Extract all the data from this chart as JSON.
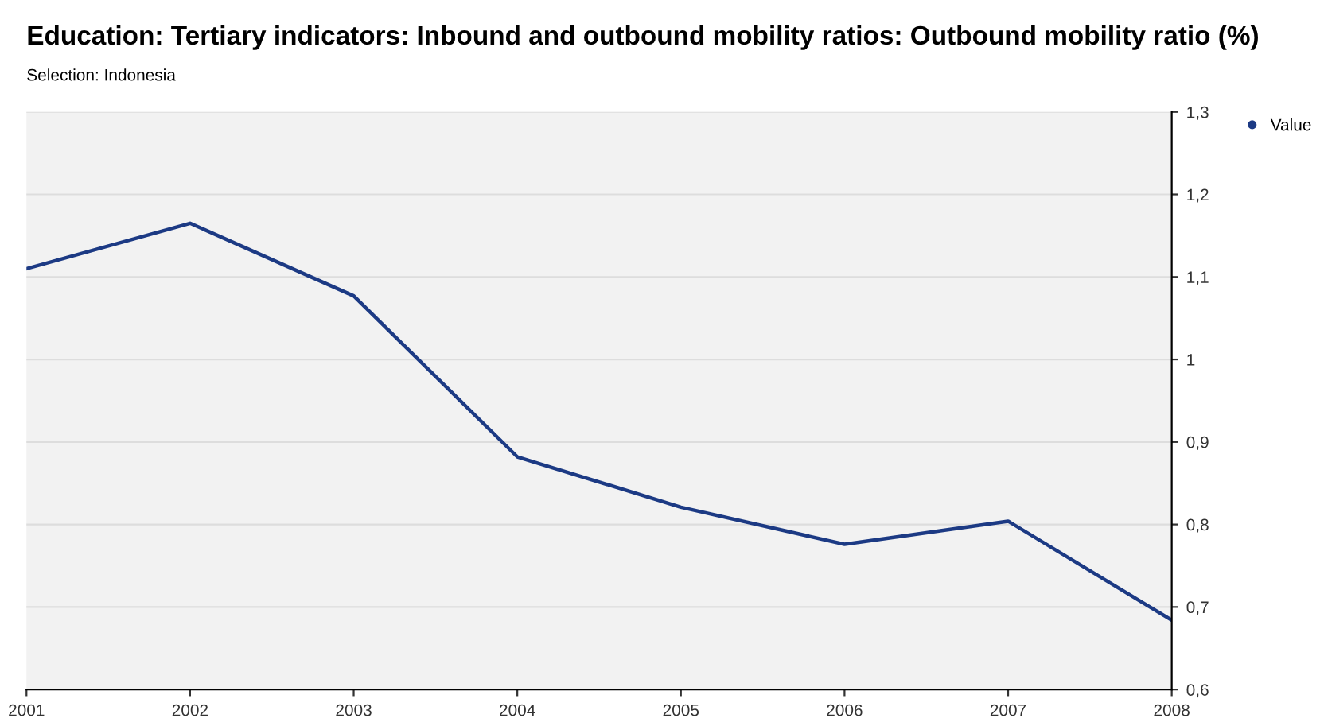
{
  "chart_data": {
    "type": "line",
    "title": "Education: Tertiary indicators: Inbound and outbound mobility ratios: Outbound mobility ratio (%)",
    "subtitle": "Selection: Indonesia",
    "categories": [
      "2001",
      "2002",
      "2003",
      "2004",
      "2005",
      "2006",
      "2007",
      "2008"
    ],
    "series": [
      {
        "name": "Value",
        "color": "#1c3a84",
        "values": [
          1.11,
          1.165,
          1.077,
          0.882,
          0.821,
          0.776,
          0.804,
          0.684
        ]
      }
    ],
    "ylim": [
      0.6,
      1.3
    ],
    "yticks": [
      {
        "value": 0.6,
        "label": "0,6"
      },
      {
        "value": 0.7,
        "label": "0,7"
      },
      {
        "value": 0.8,
        "label": "0,8"
      },
      {
        "value": 0.9,
        "label": "0,9"
      },
      {
        "value": 1,
        "label": "1"
      },
      {
        "value": 1.1,
        "label": "1,1"
      },
      {
        "value": 1.2,
        "label": "1,2"
      },
      {
        "value": 1.3,
        "label": "1,3"
      }
    ],
    "grid": "y",
    "legend": "top right",
    "marker": "none",
    "line_style": "solid"
  }
}
